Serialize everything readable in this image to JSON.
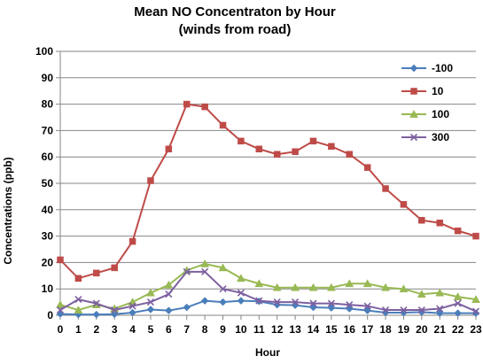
{
  "chart_data": {
    "type": "line",
    "title": "Mean NO Concentraton by Hour",
    "subtitle": "(winds from road)",
    "xlabel": "Hour",
    "ylabel": "Concentrations (ppb)",
    "ylim": [
      0,
      100
    ],
    "yticks": [
      0,
      10,
      20,
      30,
      40,
      50,
      60,
      70,
      80,
      90,
      100
    ],
    "x": [
      0,
      1,
      2,
      3,
      4,
      5,
      6,
      7,
      8,
      9,
      10,
      11,
      12,
      13,
      14,
      15,
      16,
      17,
      18,
      19,
      20,
      21,
      22,
      23
    ],
    "grid": "horizontal",
    "legend_position": "right",
    "series": [
      {
        "name": "-100",
        "color": "#4a7ebb",
        "marker": "diamond",
        "values": [
          0.5,
          0.3,
          0.3,
          0.4,
          1.0,
          2.2,
          1.8,
          3.0,
          5.5,
          5.0,
          5.5,
          5.3,
          4.0,
          3.8,
          3.0,
          2.8,
          2.5,
          1.8,
          1.0,
          1.0,
          1.2,
          0.8,
          0.8,
          0.8
        ]
      },
      {
        "name": "10",
        "color": "#be4b48",
        "marker": "square",
        "values": [
          21,
          14,
          16,
          18,
          28,
          51,
          63,
          80,
          79,
          72,
          66,
          63,
          61,
          62,
          66,
          64,
          61,
          56,
          48,
          42,
          36,
          35,
          32,
          30
        ]
      },
      {
        "name": "100",
        "color": "#98b954",
        "marker": "triangle",
        "values": [
          4.0,
          2.0,
          4.0,
          2.5,
          5.0,
          8.5,
          11.5,
          17.0,
          19.5,
          18.0,
          14.0,
          12.0,
          10.5,
          10.5,
          10.5,
          10.5,
          12.0,
          12.0,
          10.5,
          10.0,
          8.0,
          8.5,
          7.0,
          6.0
        ]
      },
      {
        "name": "300",
        "color": "#7d60a0",
        "marker": "x",
        "values": [
          2.0,
          6.0,
          4.5,
          2.0,
          3.5,
          5.0,
          8.0,
          16.5,
          16.5,
          10.0,
          8.5,
          5.5,
          5.0,
          5.0,
          4.5,
          4.5,
          4.0,
          3.5,
          2.0,
          2.0,
          2.0,
          2.5,
          4.5,
          1.5
        ]
      }
    ]
  }
}
